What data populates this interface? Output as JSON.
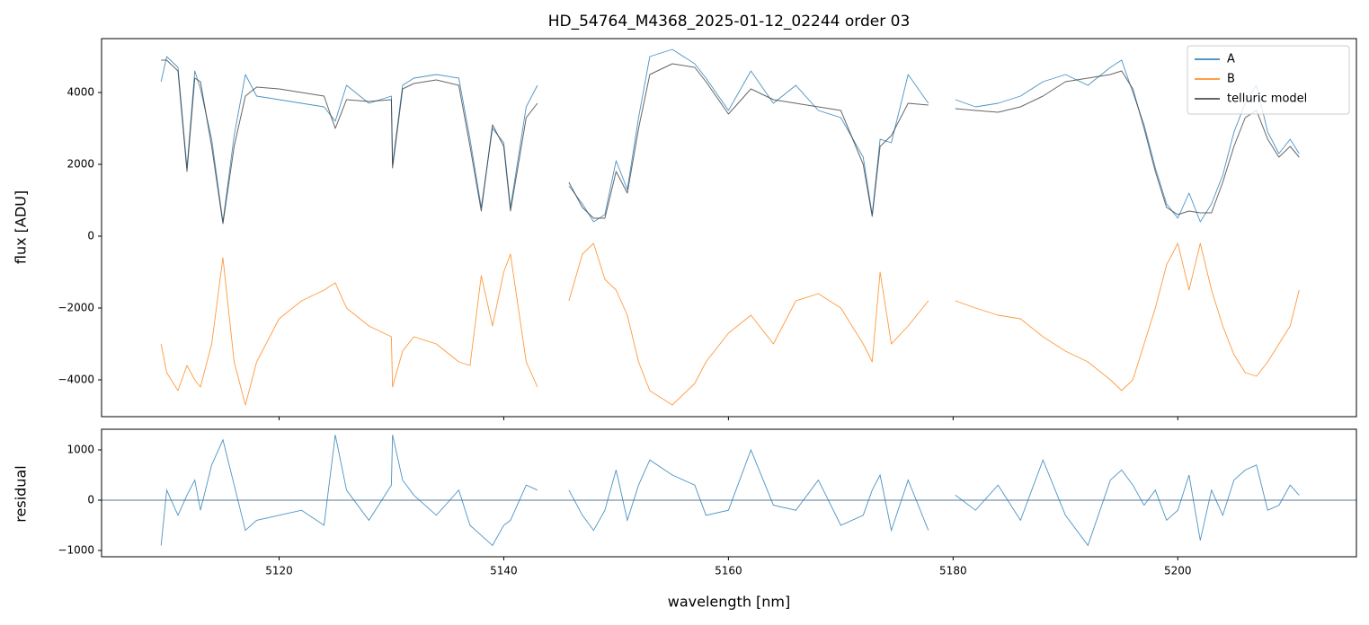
{
  "chart_data": [
    {
      "type": "line",
      "title": "HD_54764_M4368_2025-01-12_02244  order 03",
      "ylabel": "flux [ADU]",
      "xlim": [
        5104.2,
        5215.9
      ],
      "ylim": [
        -5025,
        5500
      ],
      "xticks": [
        5120,
        5140,
        5160,
        5180,
        5200
      ],
      "yticks": [
        {
          "value": -4000,
          "label": "−4000"
        },
        {
          "value": -2000,
          "label": "−2000"
        },
        0,
        2000,
        4000
      ],
      "legend": "upper right",
      "x": [
        5109.5,
        5110,
        5111,
        5111.8,
        5112.5,
        5113,
        5114,
        5115,
        5116,
        5117,
        5118,
        5120,
        5122,
        5124,
        5125,
        5126,
        5128,
        5130,
        5130.1,
        5131,
        5132,
        5134,
        5136,
        5137,
        5138,
        5139,
        5140,
        5140.6,
        5142,
        5143,
        null,
        5145.8,
        5147,
        5148,
        5149,
        5150,
        5151,
        5152,
        5153,
        5155,
        5157,
        5158,
        5160,
        5162,
        5164,
        5166,
        5168,
        5170,
        5172,
        5172.8,
        5173.5,
        5174.5,
        5176,
        5177.8,
        null,
        5180.2,
        5182,
        5184,
        5186,
        5188,
        5190,
        5192,
        5194,
        5195,
        5196,
        5197,
        5198,
        5199,
        5200,
        5201,
        5202,
        5203,
        5204,
        5205,
        5206,
        5207,
        5208,
        5209,
        5210,
        5210.8
      ],
      "series": [
        {
          "name": "A",
          "color": "#1f77b4",
          "values": [
            4300,
            5000,
            4700,
            1900,
            4600,
            4100,
            2700,
            400,
            2800,
            4500,
            3900,
            3800,
            3700,
            3600,
            3200,
            4200,
            3700,
            3900,
            2000,
            4200,
            4400,
            4500,
            4400,
            2700,
            800,
            3000,
            2600,
            800,
            3600,
            4200,
            null,
            1400,
            900,
            400,
            600,
            2100,
            1300,
            3300,
            5000,
            5200,
            4800,
            4400,
            3500,
            4600,
            3700,
            4200,
            3500,
            3300,
            2200,
            600,
            2700,
            2600,
            4500,
            3700,
            null,
            3800,
            3600,
            3700,
            3900,
            4300,
            4500,
            4200,
            4700,
            4900,
            4000,
            3100,
            1900,
            900,
            500,
            1200,
            400,
            900,
            1700,
            2900,
            3700,
            4200,
            2900,
            2300,
            2700,
            2300
          ]
        },
        {
          "name": "B",
          "color": "#ff7f0e",
          "values": [
            -3000,
            -3800,
            -4300,
            -3600,
            -4000,
            -4200,
            -3000,
            -600,
            -3500,
            -4700,
            -3500,
            -2300,
            -1800,
            -1500,
            -1300,
            -2000,
            -2500,
            -2800,
            -4200,
            -3200,
            -2800,
            -3000,
            -3500,
            -3600,
            -1100,
            -2500,
            -1000,
            -500,
            -3500,
            -4200,
            null,
            -1800,
            -500,
            -200,
            -1200,
            -1500,
            -2200,
            -3500,
            -4300,
            -4700,
            -4100,
            -3500,
            -2700,
            -2200,
            -3000,
            -1800,
            -1600,
            -2000,
            -3000,
            -3500,
            -1000,
            -3000,
            -2500,
            -1800,
            null,
            -1800,
            -2000,
            -2200,
            -2300,
            -2800,
            -3200,
            -3500,
            -4000,
            -4300,
            -4000,
            -3000,
            -2000,
            -800,
            -200,
            -1500,
            -200,
            -1500,
            -2500,
            -3300,
            -3800,
            -3900,
            -3500,
            -3000,
            -2500,
            -1500
          ]
        },
        {
          "name": "telluric model",
          "color": "#333333",
          "values": [
            4900,
            4900,
            4600,
            1800,
            4400,
            4300,
            2500,
            350,
            2500,
            3900,
            4150,
            4100,
            4000,
            3900,
            3000,
            3800,
            3750,
            3800,
            1900,
            4100,
            4250,
            4350,
            4200,
            2500,
            700,
            3100,
            2500,
            700,
            3300,
            3700,
            null,
            1500,
            800,
            500,
            500,
            1800,
            1200,
            3000,
            4500,
            4800,
            4700,
            4300,
            3400,
            4100,
            3800,
            3700,
            3600,
            3500,
            2000,
            550,
            2500,
            2800,
            3700,
            3650,
            null,
            3550,
            3500,
            3450,
            3600,
            3900,
            4300,
            4400,
            4500,
            4600,
            4100,
            3000,
            1800,
            800,
            600,
            700,
            650,
            650,
            1500,
            2500,
            3300,
            3500,
            2700,
            2200,
            2500,
            2200
          ]
        }
      ]
    },
    {
      "type": "line",
      "xlabel": "wavelength [nm]",
      "ylabel": "residual",
      "xlim": [
        5104.2,
        5215.9
      ],
      "ylim": [
        -1125,
        1411
      ],
      "xticks": [
        5120,
        5140,
        5160,
        5180,
        5200
      ],
      "yticks": [
        {
          "value": -1000,
          "label": "−1000"
        },
        0,
        1000
      ],
      "hline": 0,
      "color": "#1f77b4",
      "x": [
        5109.5,
        5110,
        5111,
        5111.8,
        5112.5,
        5113,
        5114,
        5115,
        5116,
        5117,
        5118,
        5120,
        5122,
        5124,
        5125,
        5126,
        5128,
        5130,
        5130.1,
        5131,
        5132,
        5134,
        5136,
        5137,
        5138,
        5139,
        5140,
        5140.6,
        5142,
        5143,
        null,
        5145.8,
        5147,
        5148,
        5149,
        5150,
        5151,
        5152,
        5153,
        5155,
        5157,
        5158,
        5160,
        5162,
        5164,
        5166,
        5168,
        5170,
        5172,
        5172.8,
        5173.5,
        5174.5,
        5176,
        5177.8,
        null,
        5180.2,
        5182,
        5184,
        5186,
        5188,
        5190,
        5192,
        5194,
        5195,
        5196,
        5197,
        5198,
        5199,
        5200,
        5201,
        5202,
        5203,
        5204,
        5205,
        5206,
        5207,
        5208,
        5209,
        5210,
        5210.8
      ],
      "values": [
        -900,
        200,
        -300,
        100,
        400,
        -200,
        700,
        1200,
        300,
        -600,
        -400,
        -300,
        -200,
        -500,
        1300,
        200,
        -400,
        300,
        1300,
        400,
        100,
        -300,
        200,
        -500,
        -700,
        -900,
        -500,
        -400,
        300,
        200,
        null,
        200,
        -300,
        -600,
        -200,
        600,
        -400,
        300,
        800,
        500,
        300,
        -300,
        -200,
        1000,
        -100,
        -200,
        400,
        -500,
        -300,
        200,
        500,
        -600,
        400,
        -600,
        null,
        100,
        -200,
        300,
        -400,
        800,
        -300,
        -900,
        400,
        600,
        300,
        -100,
        200,
        -400,
        -200,
        500,
        -800,
        200,
        -300,
        400,
        600,
        700,
        -200,
        -100,
        300,
        100
      ]
    }
  ]
}
